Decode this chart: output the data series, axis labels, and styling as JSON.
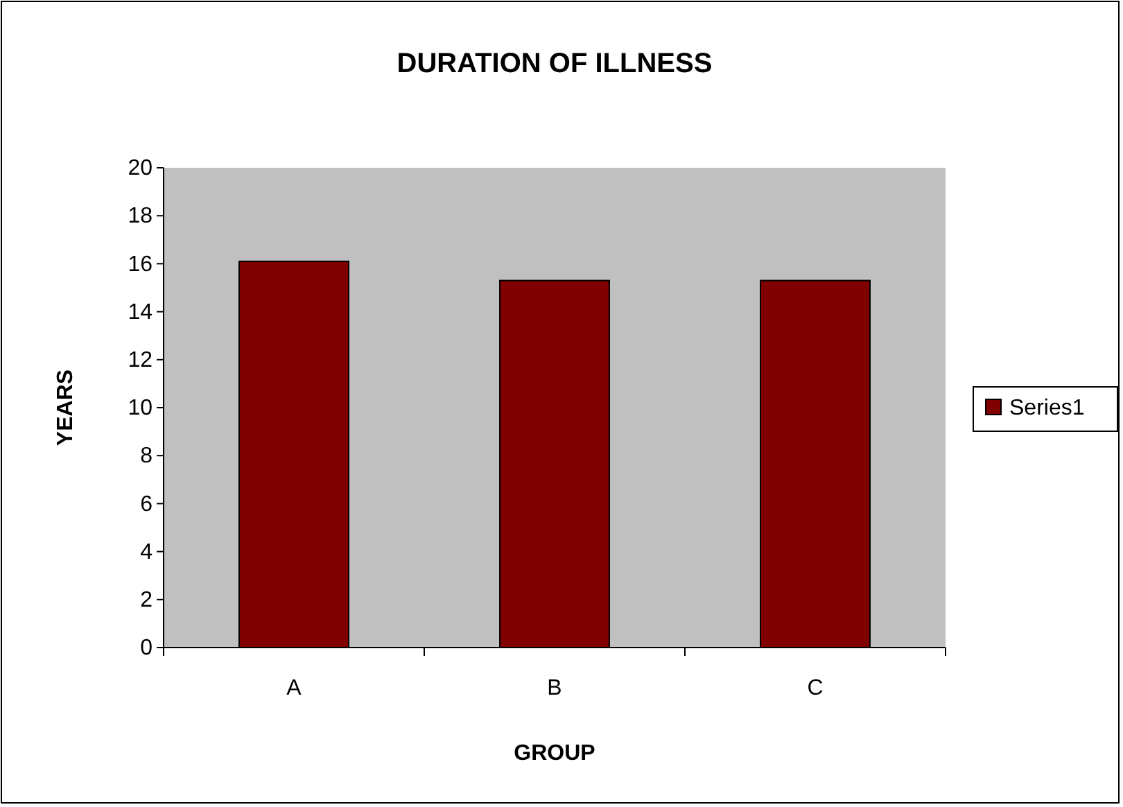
{
  "chart_data": {
    "type": "bar",
    "title": "DURATION OF ILLNESS",
    "xlabel": "GROUP",
    "ylabel": "YEARS",
    "categories": [
      "A",
      "B",
      "C"
    ],
    "series": [
      {
        "name": "Series1",
        "color": "#800000",
        "values": [
          16.1,
          15.3,
          15.3
        ]
      }
    ],
    "ylim": [
      0,
      20
    ],
    "yticks": [
      0,
      2,
      4,
      6,
      8,
      10,
      12,
      14,
      16,
      18,
      20
    ],
    "grid": false,
    "legend": "right"
  }
}
